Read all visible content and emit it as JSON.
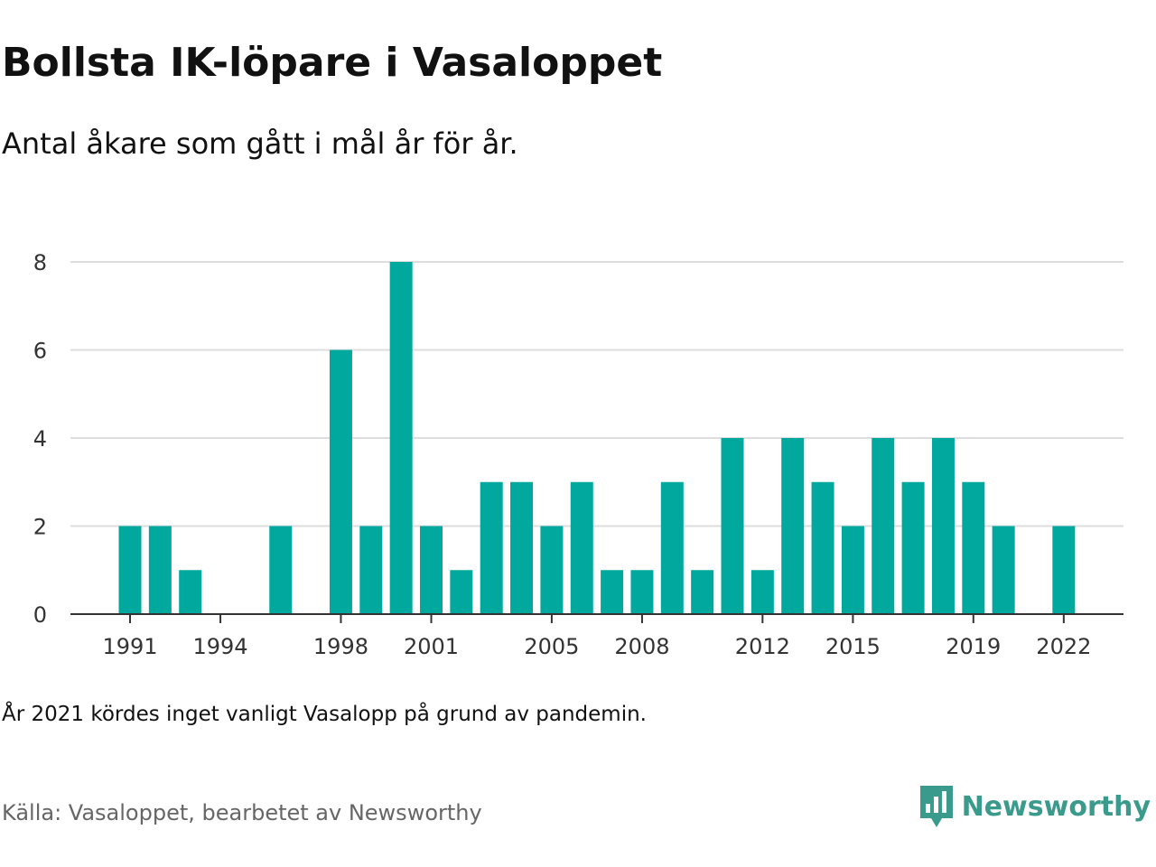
{
  "title": "Bollsta IK-löpare i Vasaloppet",
  "subtitle": "Antal åkare som gått i mål år för år.",
  "note": "År 2021 kördes inget vanligt Vasalopp på grund av pandemin.",
  "source": "Källa: Vasaloppet, bearbetet av Newsworthy",
  "brand": {
    "name": "Newsworthy",
    "logo_icon": "bar-chart-speech-bubble-icon"
  },
  "colors": {
    "bar": "#00a89d",
    "grid": "#dddddd",
    "axis": "#333333",
    "brand": "#3a9a8c"
  },
  "chart_data": {
    "type": "bar",
    "title": "Bollsta IK-löpare i Vasaloppet",
    "subtitle": "Antal åkare som gått i mål år för år.",
    "xlabel": "",
    "ylabel": "",
    "x": [
      1991,
      1992,
      1993,
      1994,
      1995,
      1996,
      1997,
      1998,
      1999,
      2000,
      2001,
      2002,
      2003,
      2004,
      2005,
      2006,
      2007,
      2008,
      2009,
      2010,
      2011,
      2012,
      2013,
      2014,
      2015,
      2016,
      2017,
      2018,
      2019,
      2020,
      2021,
      2022
    ],
    "values": [
      2,
      2,
      1,
      0,
      0,
      2,
      0,
      6,
      2,
      8,
      2,
      1,
      3,
      3,
      2,
      3,
      1,
      1,
      3,
      1,
      4,
      1,
      4,
      3,
      2,
      4,
      3,
      4,
      3,
      2,
      0,
      2
    ],
    "x_ticks": [
      "1991",
      "1994",
      "1998",
      "2001",
      "2005",
      "2008",
      "2012",
      "2015",
      "2019",
      "2022"
    ],
    "y_ticks": [
      "0",
      "2",
      "4",
      "6",
      "8"
    ],
    "ylim": [
      0,
      8
    ],
    "grid": true,
    "legend": "none"
  }
}
